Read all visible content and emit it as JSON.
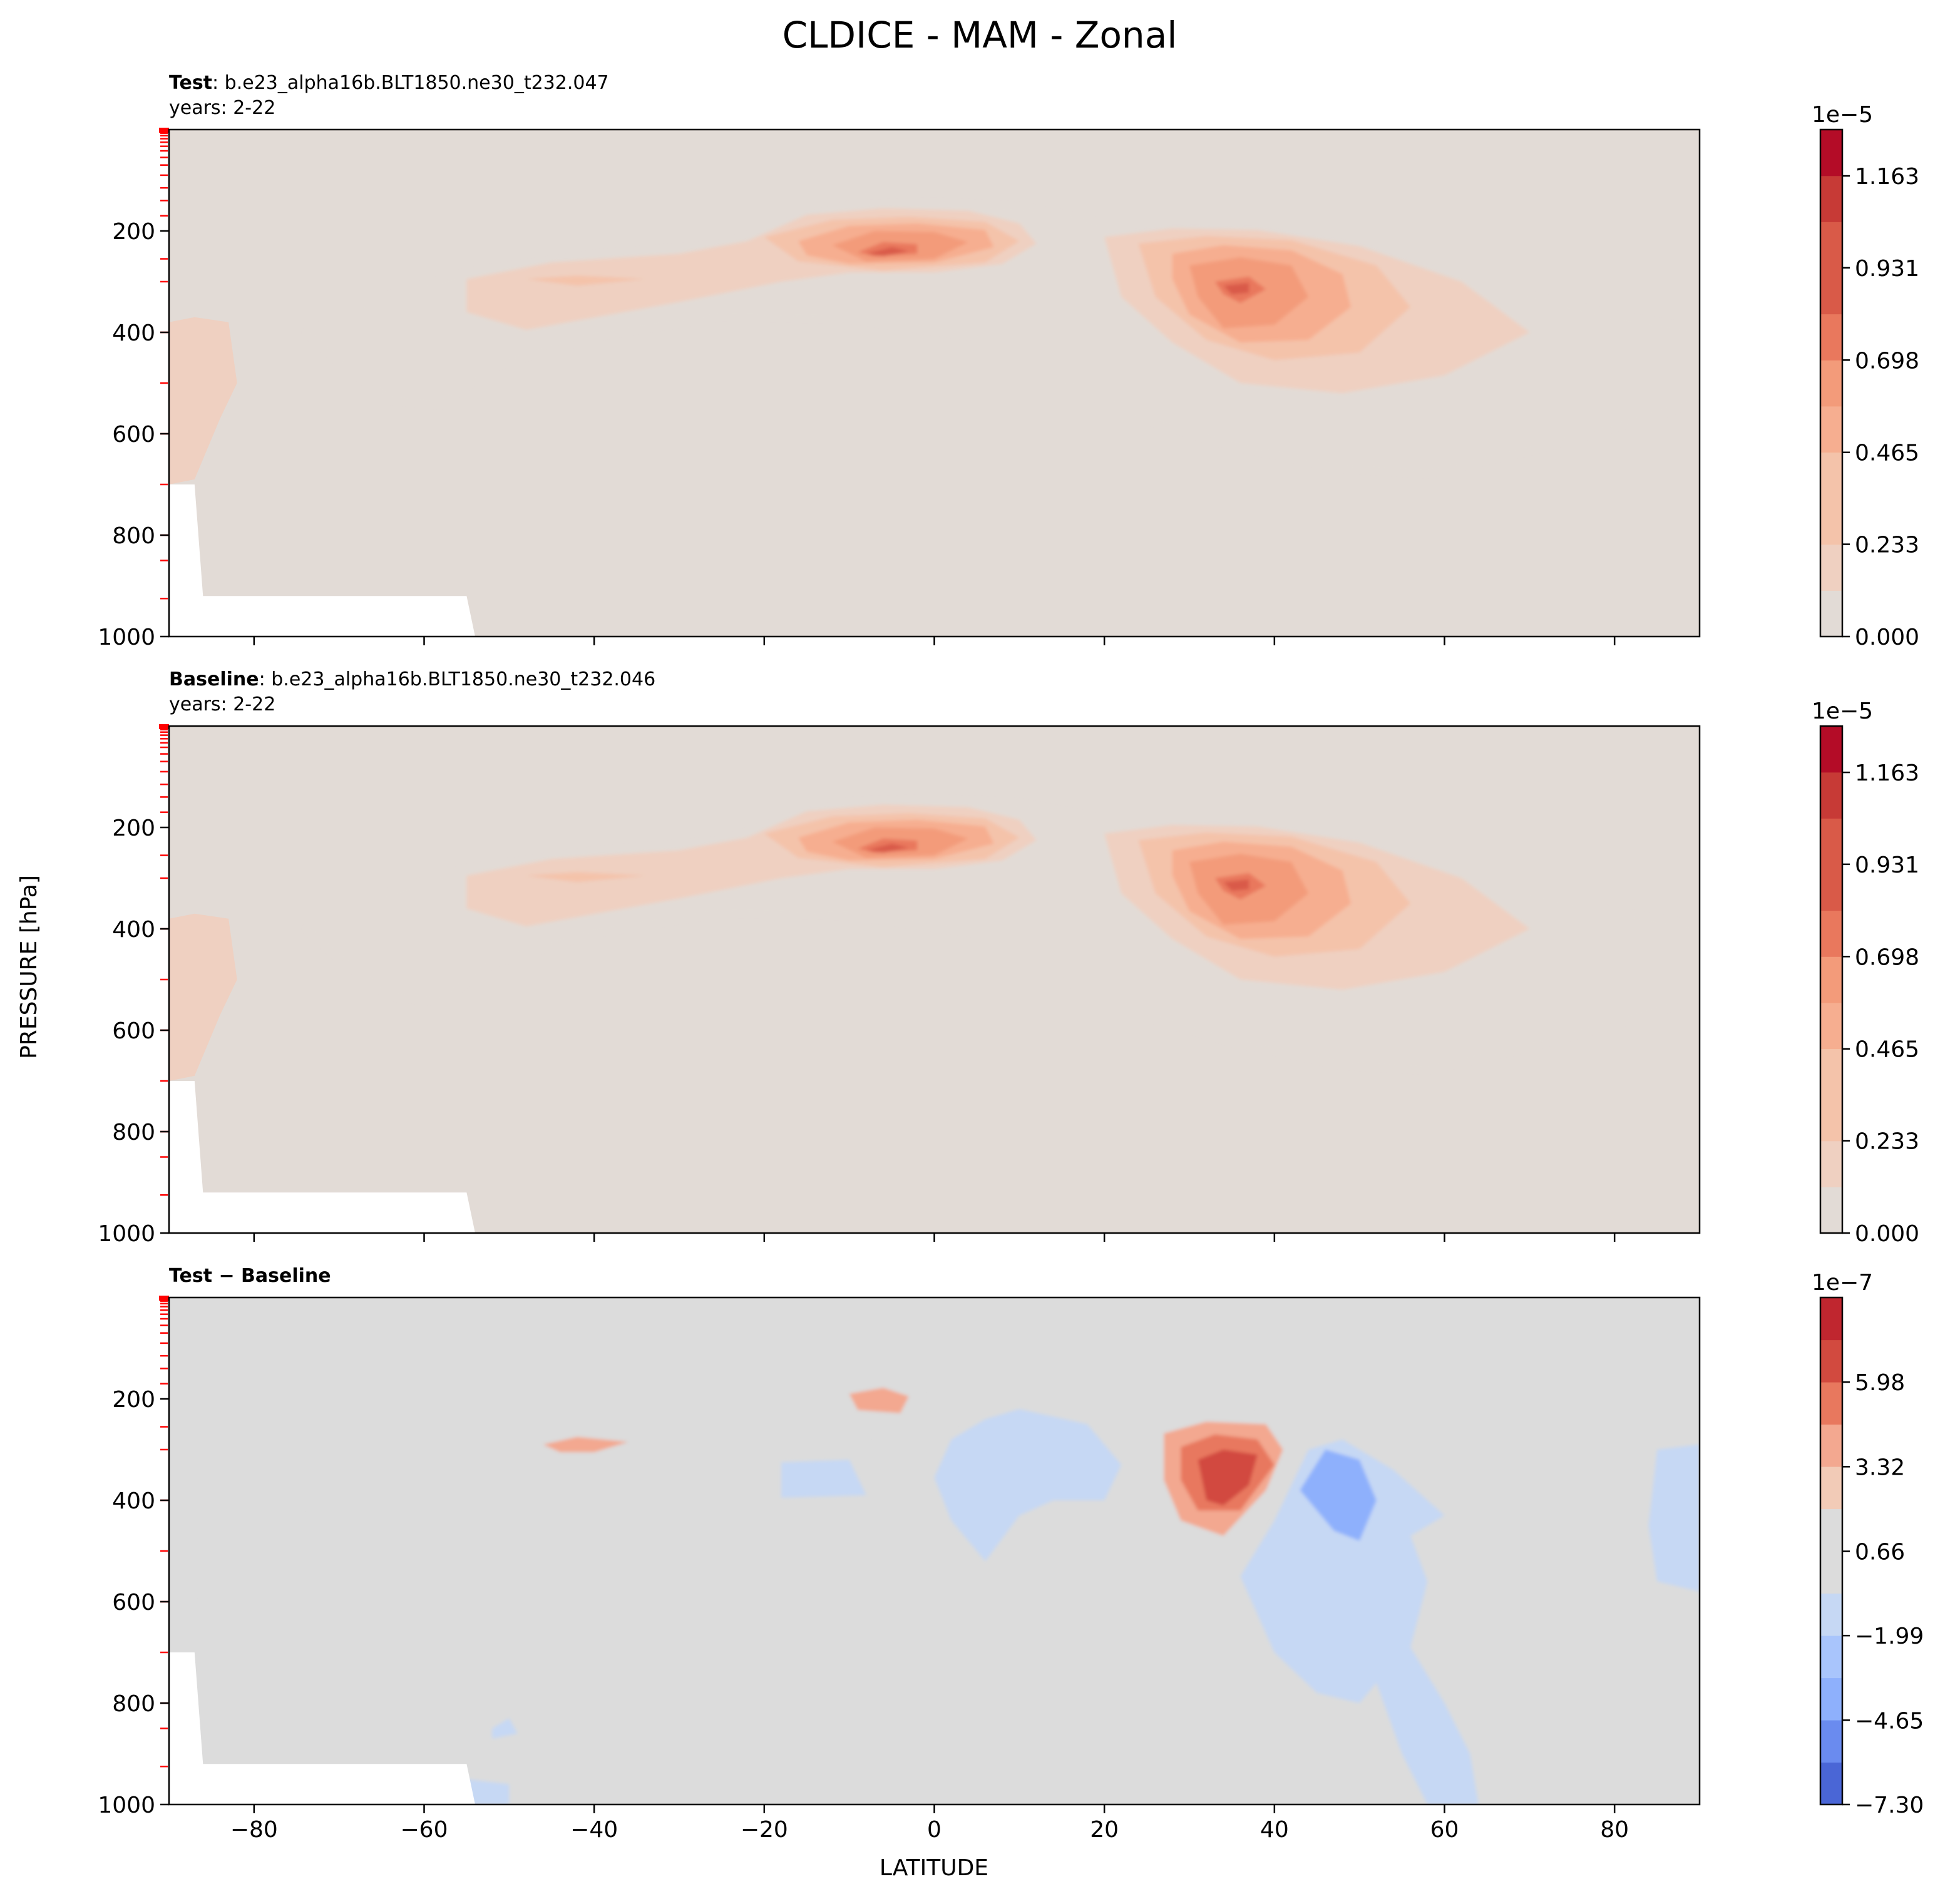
{
  "figure": {
    "title": "CLDICE - MAM - Zonal",
    "ylabel": "PRESSURE [hPa]",
    "xlabel": "LATITUDE"
  },
  "colors": {
    "background_zero": "#e2dbd6",
    "diff_zero": "#dcdcdc",
    "axis": "#000000",
    "level_ticks": "#ff0000",
    "missing": "#ffffff",
    "seq_scale": [
      "#e2dbd6",
      "#efd0c1",
      "#f4c3aa",
      "#f6ae90",
      "#f39b7a",
      "#e9785d",
      "#d95a48",
      "#c73a36",
      "#b40c27"
    ],
    "div_scale": [
      "#4a66d6",
      "#6a8bef",
      "#8eb0fc",
      "#a9c5fc",
      "#c6d8f4",
      "#dcdcdc",
      "#f2cbb7",
      "#f3a890",
      "#e8785e",
      "#d24a3f",
      "#c0262f"
    ]
  },
  "chart_data": [
    {
      "type": "contour",
      "name": "test",
      "title_bold": "Test",
      "title_rest": ": b.e23_alpha16b.BLT1850.ne30_t232.047",
      "subtitle": "years: 2-22",
      "x_range": [
        -90,
        90
      ],
      "y_range": [
        1000,
        0
      ],
      "y_inverted": true,
      "x_ticks": [
        -80,
        -60,
        -40,
        -20,
        0,
        20,
        40,
        60,
        80
      ],
      "x_tick_labels_shown": false,
      "y_ticks": [
        200,
        400,
        600,
        800,
        1000
      ],
      "colorbar": {
        "multiplier": "1e−5",
        "ticks": [
          "0.000",
          "0.233",
          "0.465",
          "0.698",
          "0.931",
          "1.163"
        ],
        "tick_values": [
          0,
          0.233,
          0.465,
          0.698,
          0.931,
          1.163
        ],
        "level_step": 0.1163,
        "levels": 11,
        "max": 1.28
      },
      "features": [
        {
          "label": "equatorial upper-tropospheric maximum",
          "lat": -6,
          "p": 245,
          "value": 1.25
        },
        {
          "label": "northern midlatitude maximum",
          "lat": 35,
          "p": 310,
          "value": 1.2
        },
        {
          "label": "southern band secondary maximum",
          "lat": -45,
          "p": 295,
          "value": 0.35
        }
      ],
      "missing_region": "below topography at -90 to -55 latitude near surface"
    },
    {
      "type": "contour",
      "name": "baseline",
      "title_bold": "Baseline",
      "title_rest": ": b.e23_alpha16b.BLT1850.ne30_t232.046",
      "subtitle": "years: 2-22",
      "x_range": [
        -90,
        90
      ],
      "y_range": [
        1000,
        0
      ],
      "y_inverted": true,
      "x_ticks": [
        -80,
        -60,
        -40,
        -20,
        0,
        20,
        40,
        60,
        80
      ],
      "x_tick_labels_shown": false,
      "y_ticks": [
        200,
        400,
        600,
        800,
        1000
      ],
      "colorbar": {
        "multiplier": "1e−5",
        "ticks": [
          "0.000",
          "0.233",
          "0.465",
          "0.698",
          "0.931",
          "1.163"
        ],
        "tick_values": [
          0,
          0.233,
          0.465,
          0.698,
          0.931,
          1.163
        ],
        "level_step": 0.1163,
        "levels": 11,
        "max": 1.28
      },
      "features": [
        {
          "label": "equatorial upper-tropospheric maximum",
          "lat": -6,
          "p": 245,
          "value": 1.2
        },
        {
          "label": "northern midlatitude maximum",
          "lat": 35,
          "p": 305,
          "value": 1.15
        },
        {
          "label": "southern band secondary maximum",
          "lat": -45,
          "p": 295,
          "value": 0.33
        }
      ],
      "missing_region": "below topography at -90 to -55 latitude near surface"
    },
    {
      "type": "contour",
      "name": "difference",
      "title_bold": "Test − Baseline",
      "title_rest": "",
      "subtitle": "",
      "x_range": [
        -90,
        90
      ],
      "y_range": [
        1000,
        0
      ],
      "y_inverted": true,
      "x_ticks": [
        -80,
        -60,
        -40,
        -20,
        0,
        20,
        40,
        60,
        80
      ],
      "x_tick_labels": [
        "−80",
        "−60",
        "−40",
        "−20",
        "0",
        "20",
        "40",
        "60",
        "80"
      ],
      "x_tick_labels_shown": true,
      "y_ticks": [
        200,
        400,
        600,
        800,
        1000
      ],
      "colorbar": {
        "multiplier": "1e−7",
        "ticks": [
          "−7.30",
          "−4.65",
          "−1.99",
          "0.66",
          "3.32",
          "5.98"
        ],
        "tick_values": [
          -7.3,
          -4.65,
          -1.99,
          0.66,
          3.32,
          5.98
        ],
        "min": -7.3,
        "max": 8.64,
        "level_step": 1.329
      },
      "features": [
        {
          "label": "northern midlatitude positive maximum",
          "lat": 33,
          "p": 360,
          "value": 6.5
        },
        {
          "label": "positive anomaly near equator",
          "lat": -6,
          "p": 200,
          "value": 3.0
        },
        {
          "label": "southern band positive",
          "lat": -42,
          "p": 270,
          "value": 2.5
        },
        {
          "label": "negative anomaly north of 40N",
          "lat": 48,
          "p": 470,
          "value": -3.5
        }
      ],
      "missing_region": "below topography at -90 to -55 latitude near surface"
    }
  ]
}
